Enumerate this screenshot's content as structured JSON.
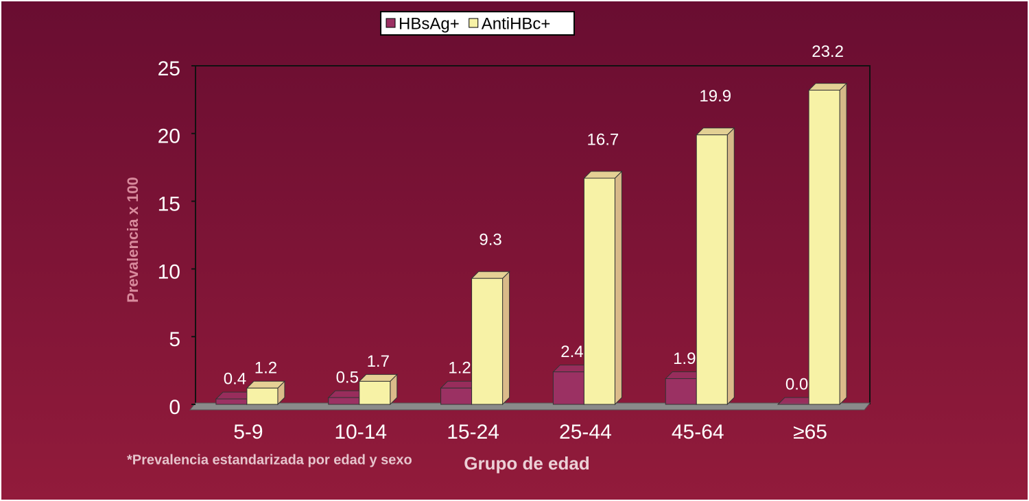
{
  "chart_data": {
    "type": "bar",
    "y_label": "Prevalencia x 100",
    "x_label": "Grupo de edad",
    "footnote": "*Prevalencia estandarizada por edad y sexo",
    "categories": [
      "5-9",
      "10-14",
      "15-24",
      "25-44",
      "45-64",
      "≥65"
    ],
    "series": [
      {
        "name": "HBsAg+",
        "color": "#9b3163",
        "values": [
          0.4,
          0.5,
          1.2,
          2.4,
          1.9,
          0.0
        ],
        "value_labels": [
          "0.4",
          "0.5",
          "1.2",
          "2.4",
          "1.9",
          "0.0"
        ]
      },
      {
        "name": "AntiHBc+",
        "color": "#f7f2a6",
        "values": [
          1.2,
          1.7,
          9.3,
          16.7,
          19.9,
          23.2
        ]
      }
    ],
    "ylim": [
      0,
      25
    ],
    "yticks": [
      0,
      5,
      10,
      15,
      20,
      25
    ],
    "legend": "top"
  }
}
